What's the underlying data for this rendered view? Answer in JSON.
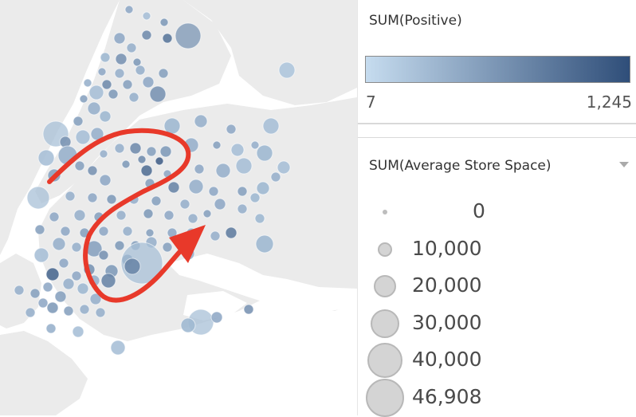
{
  "color_legend": {
    "title": "SUM(Positive)",
    "min_label": "7",
    "max_label": "1,245",
    "color_low": "#c6dcef",
    "color_high": "#2f4e79"
  },
  "size_legend": {
    "title": "SUM(Average Store Space)",
    "dropdown_icon": "caret-down-icon",
    "items": [
      {
        "label": "0",
        "value": 0
      },
      {
        "label": "10,000",
        "value": 10000
      },
      {
        "label": "20,000",
        "value": 20000
      },
      {
        "label": "30,000",
        "value": 30000
      },
      {
        "label": "40,000",
        "value": 40000
      },
      {
        "label": "46,908",
        "value": 46908
      }
    ]
  },
  "map": {
    "land_color": "#ebebeb",
    "water_color": "#ffffff",
    "annotation_color": "#e8392a",
    "annotation_icon": "red-arrow-annotation"
  }
}
